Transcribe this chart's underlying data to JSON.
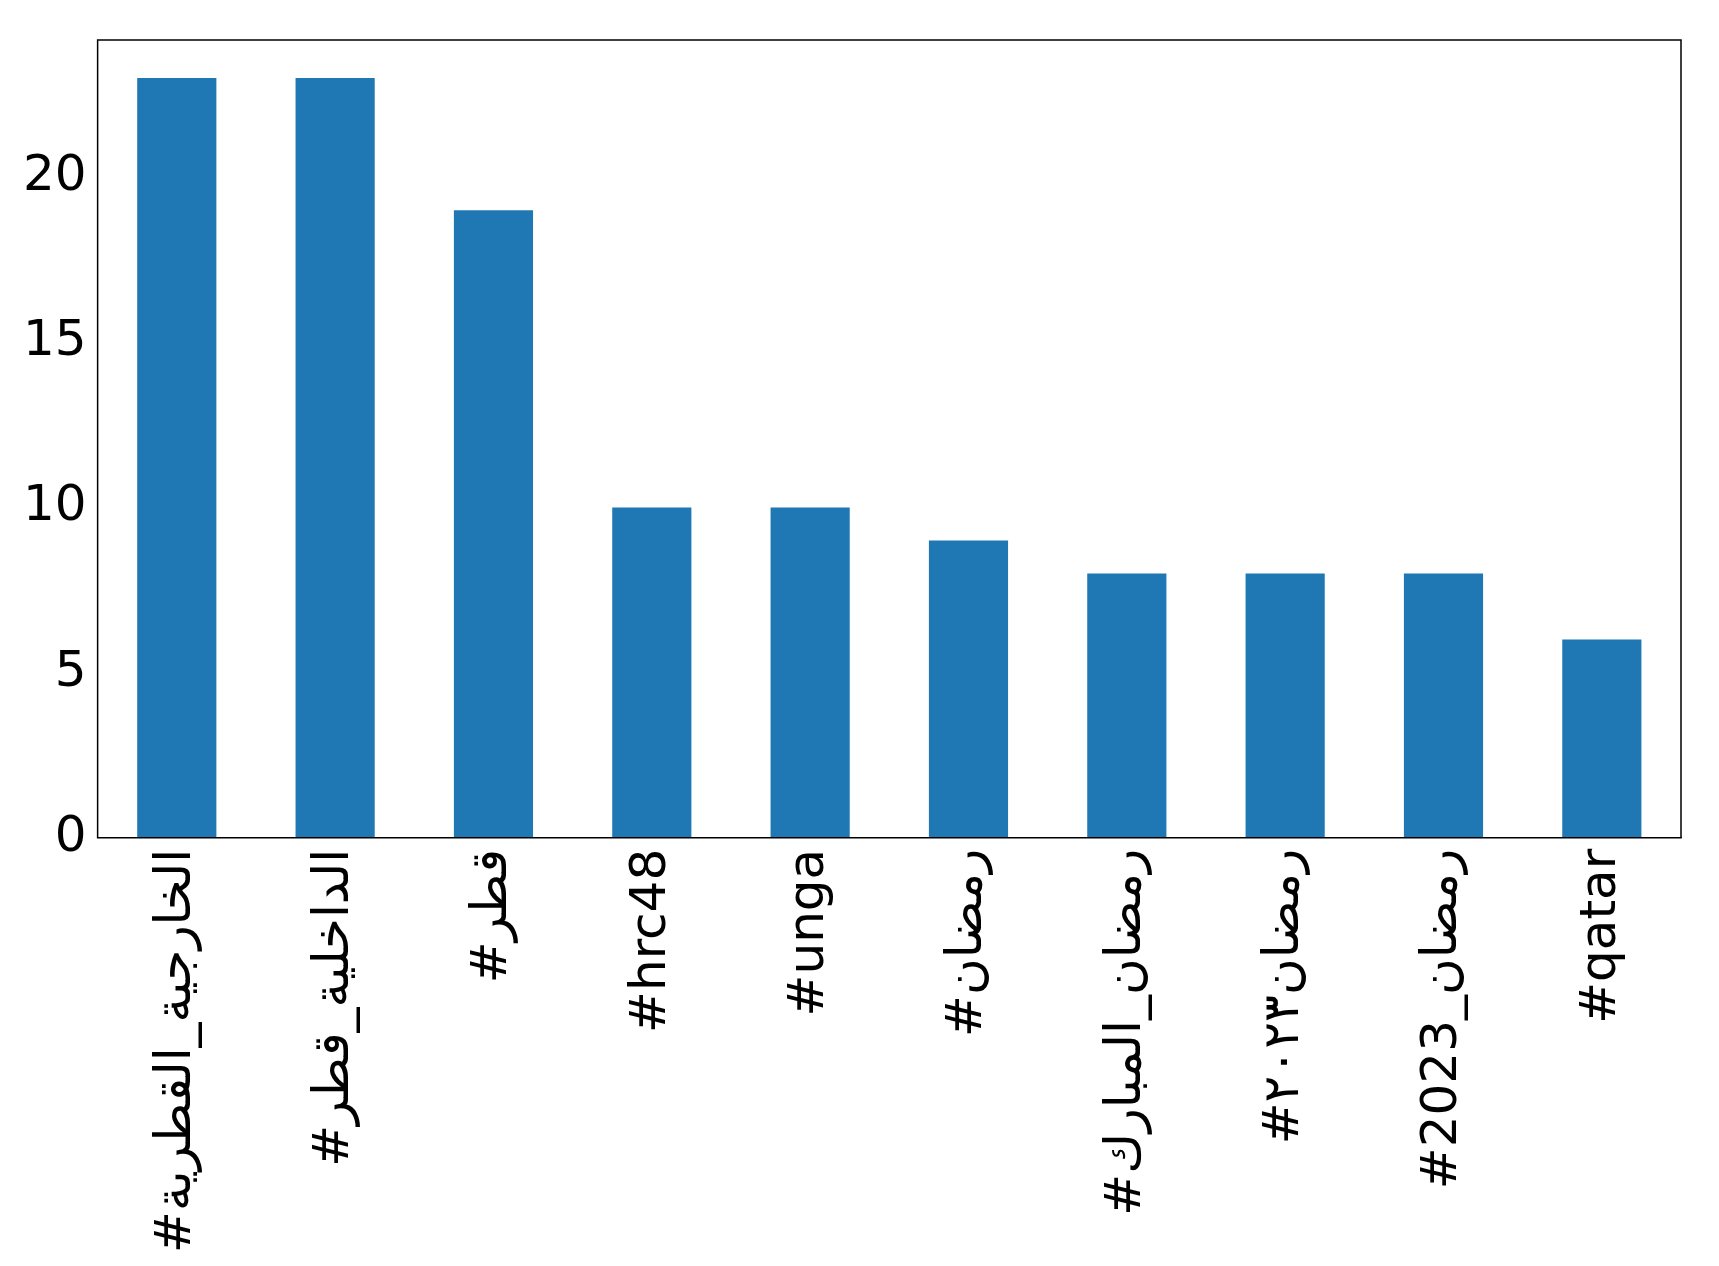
{
  "chart_data": {
    "type": "bar",
    "categories": [
      "#الخارجية_القطرية",
      "#الداخلية_قطر",
      "#قطر",
      "#hrc48",
      "#unga",
      "#رمضان",
      "#رمضان_المبارك",
      "#رمضان٢٠٢٣",
      "#رمضان_2023",
      "#qatar"
    ],
    "values": [
      23,
      23,
      19,
      10,
      10,
      9,
      8,
      8,
      8,
      6
    ],
    "color": "#1f77b4",
    "ylim": [
      0,
      24.15
    ],
    "yticks": [
      0,
      5,
      10,
      15,
      20
    ],
    "grid": false,
    "legend": false
  }
}
